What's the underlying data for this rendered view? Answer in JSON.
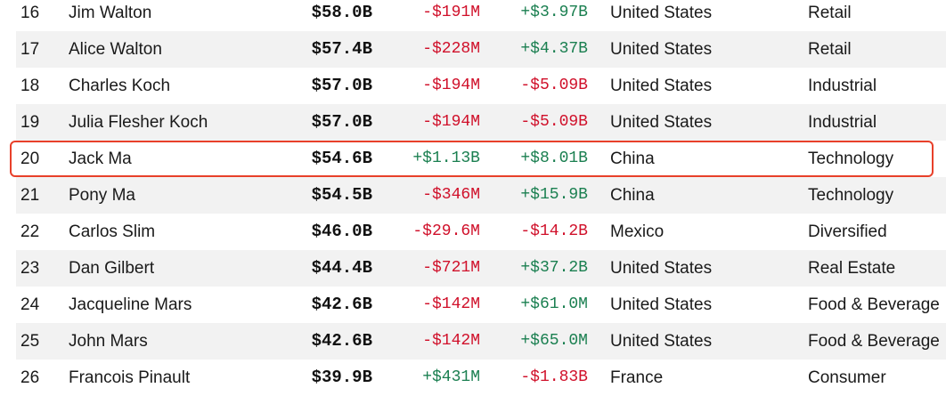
{
  "rows": [
    {
      "rank": "16",
      "name": "Jim Walton",
      "net_worth": "$58.0B",
      "last_change": "-$191M",
      "ytd_change": "+$3.97B",
      "country": "United States",
      "industry": "Retail"
    },
    {
      "rank": "17",
      "name": "Alice Walton",
      "net_worth": "$57.4B",
      "last_change": "-$228M",
      "ytd_change": "+$4.37B",
      "country": "United States",
      "industry": "Retail"
    },
    {
      "rank": "18",
      "name": "Charles Koch",
      "net_worth": "$57.0B",
      "last_change": "-$194M",
      "ytd_change": "-$5.09B",
      "country": "United States",
      "industry": "Industrial"
    },
    {
      "rank": "19",
      "name": "Julia Flesher Koch",
      "net_worth": "$57.0B",
      "last_change": "-$194M",
      "ytd_change": "-$5.09B",
      "country": "United States",
      "industry": "Industrial"
    },
    {
      "rank": "20",
      "name": "Jack Ma",
      "net_worth": "$54.6B",
      "last_change": "+$1.13B",
      "ytd_change": "+$8.01B",
      "country": "China",
      "industry": "Technology",
      "highlighted": true
    },
    {
      "rank": "21",
      "name": "Pony Ma",
      "net_worth": "$54.5B",
      "last_change": "-$346M",
      "ytd_change": "+$15.9B",
      "country": "China",
      "industry": "Technology"
    },
    {
      "rank": "22",
      "name": "Carlos Slim",
      "net_worth": "$46.0B",
      "last_change": "-$29.6M",
      "ytd_change": "-$14.2B",
      "country": "Mexico",
      "industry": "Diversified"
    },
    {
      "rank": "23",
      "name": "Dan Gilbert",
      "net_worth": "$44.4B",
      "last_change": "-$721M",
      "ytd_change": "+$37.2B",
      "country": "United States",
      "industry": "Real Estate"
    },
    {
      "rank": "24",
      "name": "Jacqueline Mars",
      "net_worth": "$42.6B",
      "last_change": "-$142M",
      "ytd_change": "+$61.0M",
      "country": "United States",
      "industry": "Food & Beverage"
    },
    {
      "rank": "25",
      "name": "John Mars",
      "net_worth": "$42.6B",
      "last_change": "-$142M",
      "ytd_change": "+$65.0M",
      "country": "United States",
      "industry": "Food & Beverage"
    },
    {
      "rank": "26",
      "name": "Francois Pinault",
      "net_worth": "$39.9B",
      "last_change": "+$431M",
      "ytd_change": "-$1.83B",
      "country": "France",
      "industry": "Consumer"
    }
  ],
  "colors": {
    "negative": "#d0102a",
    "positive": "#1a7f50",
    "highlight_border": "#e8402a",
    "alt_row": "#f2f2f2"
  }
}
